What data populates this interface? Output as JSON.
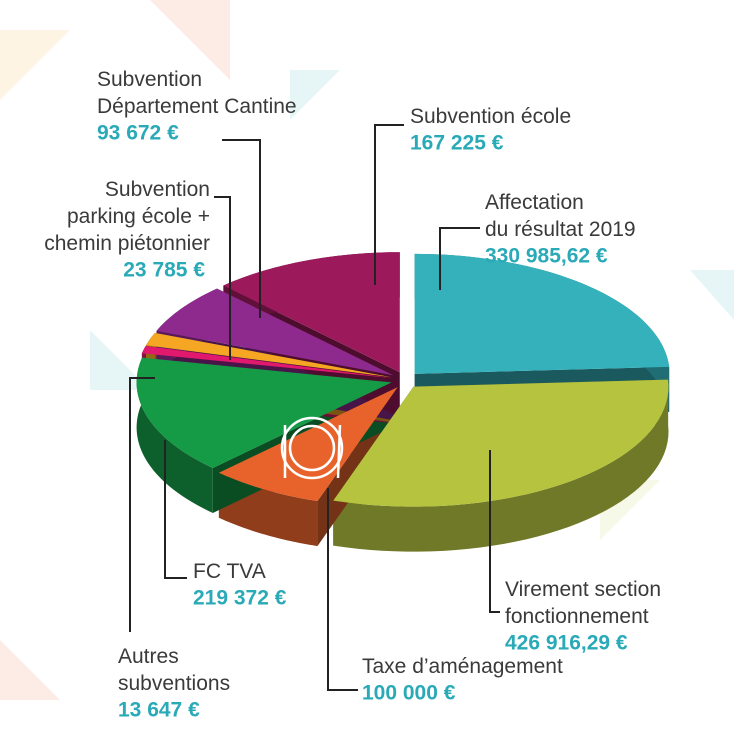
{
  "chart_data": {
    "type": "pie",
    "categories": [
      "Affectation\ndu résultat 2019",
      "Virement section\nfonctionnement",
      "Taxe d’aménagement",
      "FC TVA",
      "Autres\nsubventions",
      "Subvention\nparking école +\nchemin piétonnier",
      "Subvention\nDépartement Cantine",
      "Subvention école"
    ],
    "values": [
      330985.62,
      426916.29,
      100000,
      219372,
      13647,
      23785,
      93672,
      167225
    ],
    "value_labels": [
      "330 985,62 €",
      "426 916,29 €",
      "100 000 €",
      "219 372 €",
      "13 647 €",
      "23 785 €",
      "93 672 €",
      "167 225 €"
    ],
    "colors": [
      "#34b1bb",
      "#b5c33f",
      "#e8632b",
      "#159a46",
      "#e0196e",
      "#f5a623",
      "#8e2a8e",
      "#9c1a5c"
    ]
  }
}
